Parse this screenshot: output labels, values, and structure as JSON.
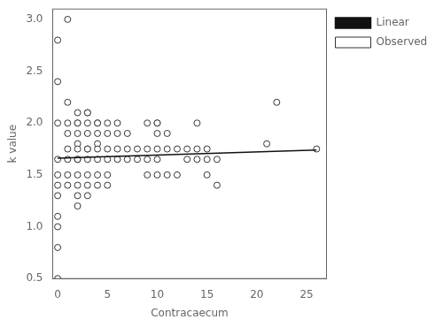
{
  "chart_data": {
    "type": "scatter",
    "xlabel": "Contracaecum",
    "ylabel": "k value",
    "xlim": [
      -0.5,
      27
    ],
    "ylim": [
      0.5,
      3.1
    ],
    "xticks": [
      0,
      5,
      10,
      15,
      20,
      25
    ],
    "yticks": [
      0.5,
      {
        "value": 1.0,
        "label": "1.0"
      },
      1.5,
      {
        "value": 2.0,
        "label": "2.0"
      },
      2.5,
      {
        "value": 3.0,
        "label": "3.0"
      }
    ],
    "grid": false,
    "legend": "right",
    "series": [
      {
        "name": "Observed",
        "type": "scatter",
        "marker": "o",
        "color": "#333333",
        "x": [
          0,
          0,
          0,
          0,
          0,
          0,
          0,
          0,
          0,
          0,
          0,
          1,
          1,
          1,
          1,
          1,
          1,
          1,
          1,
          2,
          2,
          2,
          2,
          2,
          2,
          2,
          2,
          2,
          2,
          2,
          2,
          3,
          3,
          3,
          3,
          3,
          3,
          3,
          3,
          3,
          3,
          4,
          4,
          4,
          4,
          4,
          4,
          4,
          4,
          5,
          5,
          5,
          5,
          5,
          5,
          6,
          6,
          6,
          6,
          7,
          7,
          7,
          8,
          8,
          9,
          9,
          9,
          9,
          10,
          10,
          10,
          10,
          10,
          10,
          11,
          11,
          11,
          12,
          12,
          13,
          13,
          14,
          14,
          14,
          15,
          15,
          15,
          16,
          16,
          21,
          22,
          26
        ],
        "values": [
          2.8,
          2.4,
          2.0,
          1.65,
          1.5,
          1.4,
          1.3,
          1.1,
          1.0,
          0.8,
          0.5,
          3.0,
          2.2,
          2.0,
          1.9,
          1.75,
          1.65,
          1.5,
          1.4,
          2.1,
          2.0,
          2.0,
          1.9,
          1.8,
          1.75,
          1.65,
          1.65,
          1.5,
          1.4,
          1.3,
          1.2,
          2.1,
          2.1,
          2.0,
          1.9,
          1.75,
          1.75,
          1.65,
          1.5,
          1.4,
          1.3,
          2.0,
          2.0,
          1.9,
          1.8,
          1.75,
          1.65,
          1.5,
          1.4,
          2.0,
          1.9,
          1.75,
          1.65,
          1.5,
          1.4,
          2.0,
          1.9,
          1.75,
          1.65,
          1.9,
          1.75,
          1.65,
          1.75,
          1.65,
          2.0,
          1.75,
          1.65,
          1.5,
          2.0,
          2.0,
          1.9,
          1.75,
          1.65,
          1.5,
          1.9,
          1.75,
          1.5,
          1.75,
          1.5,
          1.75,
          1.65,
          2.0,
          1.75,
          1.65,
          1.75,
          1.65,
          1.5,
          1.65,
          1.4,
          1.8,
          2.2,
          1.75
        ]
      },
      {
        "name": "Linear",
        "type": "line",
        "line_style": "solid",
        "color": "#111111",
        "x": [
          0,
          26
        ],
        "values": [
          1.662,
          1.74
        ]
      }
    ]
  }
}
